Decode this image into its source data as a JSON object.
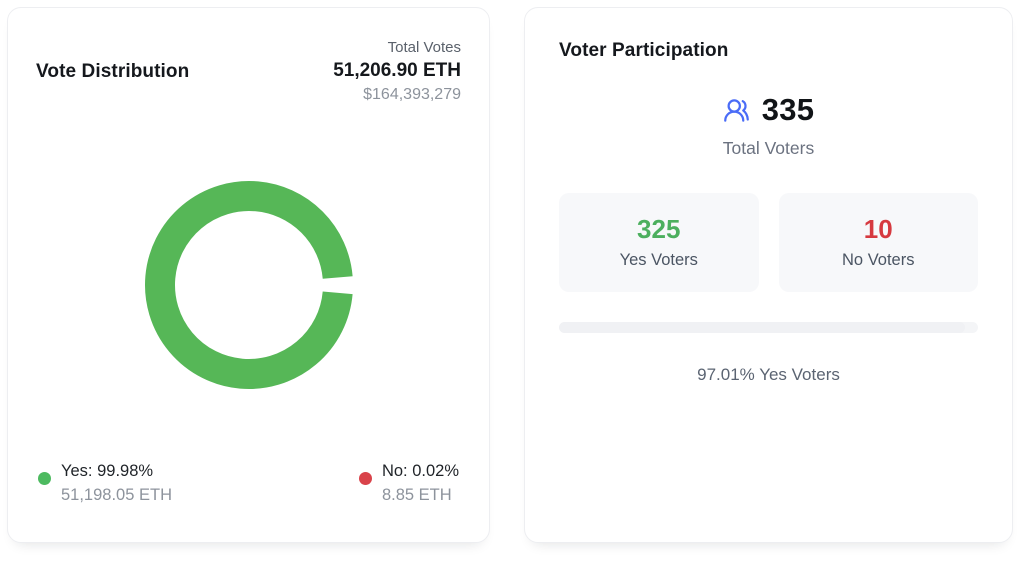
{
  "vote_distribution": {
    "title": "Vote Distribution",
    "total_votes_label": "Total Votes",
    "total_votes_eth": "51,206.90 ETH",
    "total_votes_usd": "$164,393,279",
    "legend": {
      "yes": {
        "label": "Yes: 99.98%",
        "amount": "51,198.05 ETH",
        "color": "#4dba60"
      },
      "no": {
        "label": "No: 0.02%",
        "amount": "8.85 ETH",
        "color": "#d9434a"
      }
    }
  },
  "voter_participation": {
    "title": "Voter Participation",
    "users_icon_color": "#4a6cf7",
    "total_voters": "335",
    "total_voters_label": "Total Voters",
    "yes_voters": {
      "value": "325",
      "label": "Yes Voters",
      "color": "#4caf5e"
    },
    "no_voters": {
      "value": "10",
      "label": "No Voters",
      "color": "#d6393f"
    },
    "progress_percent": 97.01,
    "summary": "97.01% Yes Voters"
  },
  "chart_data": {
    "type": "pie",
    "title": "Vote Distribution",
    "categories": [
      "Yes",
      "No"
    ],
    "values": [
      99.98,
      0.02
    ],
    "units": "percent",
    "amounts_eth": [
      51198.05,
      8.85
    ],
    "colors": [
      "#56b757",
      "#d9434a"
    ],
    "donut": true,
    "gap_deg": 10,
    "gap_position_deg": 0,
    "legend_position": "bottom"
  }
}
